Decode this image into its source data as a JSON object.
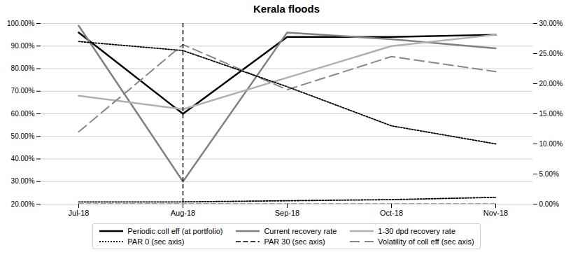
{
  "chart_data": {
    "type": "line",
    "title": "Kerala floods",
    "categories": [
      "Jul-18",
      "Aug-18",
      "Sep-18",
      "Oct-18",
      "Nov-18"
    ],
    "series": [
      {
        "name": "Periodic coll eff (at portfolio)",
        "color": "#000000",
        "line_style": "solid",
        "values": [
          0.96,
          0.6,
          0.94,
          0.94,
          0.95
        ]
      },
      {
        "name": "Current recovery rate",
        "color": "#808080",
        "line_style": "solid",
        "values": [
          0.99,
          0.3,
          0.96,
          0.93,
          0.89
        ]
      },
      {
        "name": "1-30 dpd recovery rate",
        "color": "#b0b0b0",
        "line_style": "solid",
        "values": [
          0.68,
          0.62,
          0.76,
          0.9,
          0.95
        ]
      },
      {
        "name": "PAR 0 (sec axis)",
        "color": "#000000",
        "line_style": "dotted",
        "values": [
          0.21,
          0.21,
          0.215,
          0.22,
          0.23
        ]
      },
      {
        "name": "PAR 30 (sec axis)",
        "color": "#404040",
        "line_style": "dashed",
        "axis": "y2",
        "values": [
          0.0,
          0.0,
          0.0,
          0.0,
          0.0
        ]
      },
      {
        "name": "Volatility of coll eff (sec axis)",
        "color": "#888888",
        "line_style": "longdash",
        "axis": "y2",
        "values": [
          0.12,
          0.265,
          0.19,
          0.245,
          0.22
        ]
      },
      {
        "name": "PAR 0 (sec axis)",
        "color": "#000000",
        "line_style": "dotted",
        "axis": "y2",
        "values": [
          0.27,
          0.255,
          0.195,
          0.13,
          0.1
        ]
      }
    ],
    "ylim": [
      0.2,
      1.0
    ],
    "yticks": [
      {
        "value": 0.2,
        "label": "20.00%"
      },
      {
        "value": 0.3,
        "label": "30.00%"
      },
      {
        "value": 0.4,
        "label": "40.00%"
      },
      {
        "value": 0.5,
        "label": "50.00%"
      },
      {
        "value": 0.6,
        "label": "60.00%"
      },
      {
        "value": 0.7,
        "label": "70.00%"
      },
      {
        "value": 0.8,
        "label": "80.00%"
      },
      {
        "value": 0.9,
        "label": "90.00%"
      },
      {
        "value": 1.0,
        "label": "100.00%"
      }
    ],
    "y2lim": [
      0.0,
      0.3
    ],
    "y2ticks": [
      {
        "value": 0.0,
        "label": "0.00%"
      },
      {
        "value": 0.05,
        "label": "5.00%"
      },
      {
        "value": 0.1,
        "label": "10.00%"
      },
      {
        "value": 0.15,
        "label": "15.00%"
      },
      {
        "value": 0.2,
        "label": "20.00%"
      },
      {
        "value": 0.25,
        "label": "25.00%"
      },
      {
        "value": 0.3,
        "label": "30.00%"
      }
    ],
    "grid": true,
    "legend": "bottom",
    "vlines": [
      "Aug-18"
    ]
  }
}
